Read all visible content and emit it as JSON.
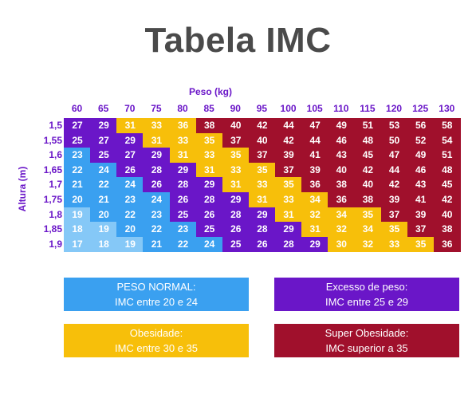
{
  "title": "Tabela IMC",
  "colors": {
    "normal": "#3aa0f0",
    "excesso": "#6a16c8",
    "obesidade": "#f7bf0a",
    "super": "#a0102c",
    "underweight": "#85c8f7"
  },
  "chart_data": {
    "type": "table",
    "xlabel": "Peso (kg)",
    "ylabel": "Altura (m)",
    "weights": [
      "60",
      "65",
      "70",
      "75",
      "80",
      "85",
      "90",
      "95",
      "100",
      "105",
      "110",
      "115",
      "120",
      "125",
      "130"
    ],
    "heights": [
      "1,5",
      "1,55",
      "1,6",
      "1,65",
      "1,7",
      "1,75",
      "1,8",
      "1,85",
      "1,9"
    ],
    "values": [
      [
        27,
        29,
        31,
        33,
        36,
        38,
        40,
        42,
        44,
        47,
        49,
        51,
        53,
        56,
        58
      ],
      [
        25,
        27,
        29,
        31,
        33,
        35,
        37,
        40,
        42,
        44,
        46,
        48,
        50,
        52,
        54
      ],
      [
        23,
        25,
        27,
        29,
        31,
        33,
        35,
        37,
        39,
        41,
        43,
        45,
        47,
        49,
        51
      ],
      [
        22,
        24,
        26,
        28,
        29,
        31,
        33,
        35,
        37,
        39,
        40,
        42,
        44,
        46,
        48
      ],
      [
        21,
        22,
        24,
        26,
        28,
        29,
        31,
        33,
        35,
        36,
        38,
        40,
        42,
        43,
        45
      ],
      [
        20,
        21,
        23,
        24,
        26,
        28,
        29,
        31,
        33,
        34,
        36,
        38,
        39,
        41,
        42
      ],
      [
        19,
        20,
        22,
        23,
        25,
        26,
        28,
        29,
        31,
        32,
        34,
        35,
        37,
        39,
        40
      ],
      [
        18,
        19,
        20,
        22,
        23,
        25,
        26,
        28,
        29,
        31,
        32,
        34,
        35,
        37,
        38
      ],
      [
        17,
        18,
        19,
        21,
        22,
        24,
        25,
        26,
        28,
        29,
        30,
        32,
        33,
        35,
        36
      ]
    ],
    "categories_grid": [
      [
        "E",
        "E",
        "O",
        "O",
        "O",
        "S",
        "S",
        "S",
        "S",
        "S",
        "S",
        "S",
        "S",
        "S",
        "S"
      ],
      [
        "E",
        "E",
        "E",
        "O",
        "O",
        "O",
        "S",
        "S",
        "S",
        "S",
        "S",
        "S",
        "S",
        "S",
        "S"
      ],
      [
        "N",
        "E",
        "E",
        "E",
        "O",
        "O",
        "O",
        "S",
        "S",
        "S",
        "S",
        "S",
        "S",
        "S",
        "S"
      ],
      [
        "N",
        "N",
        "E",
        "E",
        "E",
        "O",
        "O",
        "O",
        "S",
        "S",
        "S",
        "S",
        "S",
        "S",
        "S"
      ],
      [
        "N",
        "N",
        "N",
        "E",
        "E",
        "E",
        "O",
        "O",
        "O",
        "S",
        "S",
        "S",
        "S",
        "S",
        "S"
      ],
      [
        "N",
        "N",
        "N",
        "N",
        "E",
        "E",
        "E",
        "O",
        "O",
        "O",
        "S",
        "S",
        "S",
        "S",
        "S"
      ],
      [
        "U",
        "N",
        "N",
        "N",
        "E",
        "E",
        "E",
        "E",
        "O",
        "O",
        "O",
        "O",
        "S",
        "S",
        "S"
      ],
      [
        "U",
        "U",
        "N",
        "N",
        "N",
        "E",
        "E",
        "E",
        "E",
        "O",
        "O",
        "O",
        "O",
        "S",
        "S"
      ],
      [
        "U",
        "U",
        "U",
        "N",
        "N",
        "N",
        "E",
        "E",
        "E",
        "E",
        "O",
        "O",
        "O",
        "O",
        "S"
      ]
    ]
  },
  "legend": [
    {
      "line1": "PESO NORMAL:",
      "line2": "IMC entre 20 e 24"
    },
    {
      "line1": "Excesso de peso:",
      "line2": "IMC entre 25 e 29"
    },
    {
      "line1": "Obesidade:",
      "line2": "IMC entre 30 e 35"
    },
    {
      "line1": "Super Obesidade:",
      "line2": "IMC superior a 35"
    }
  ]
}
